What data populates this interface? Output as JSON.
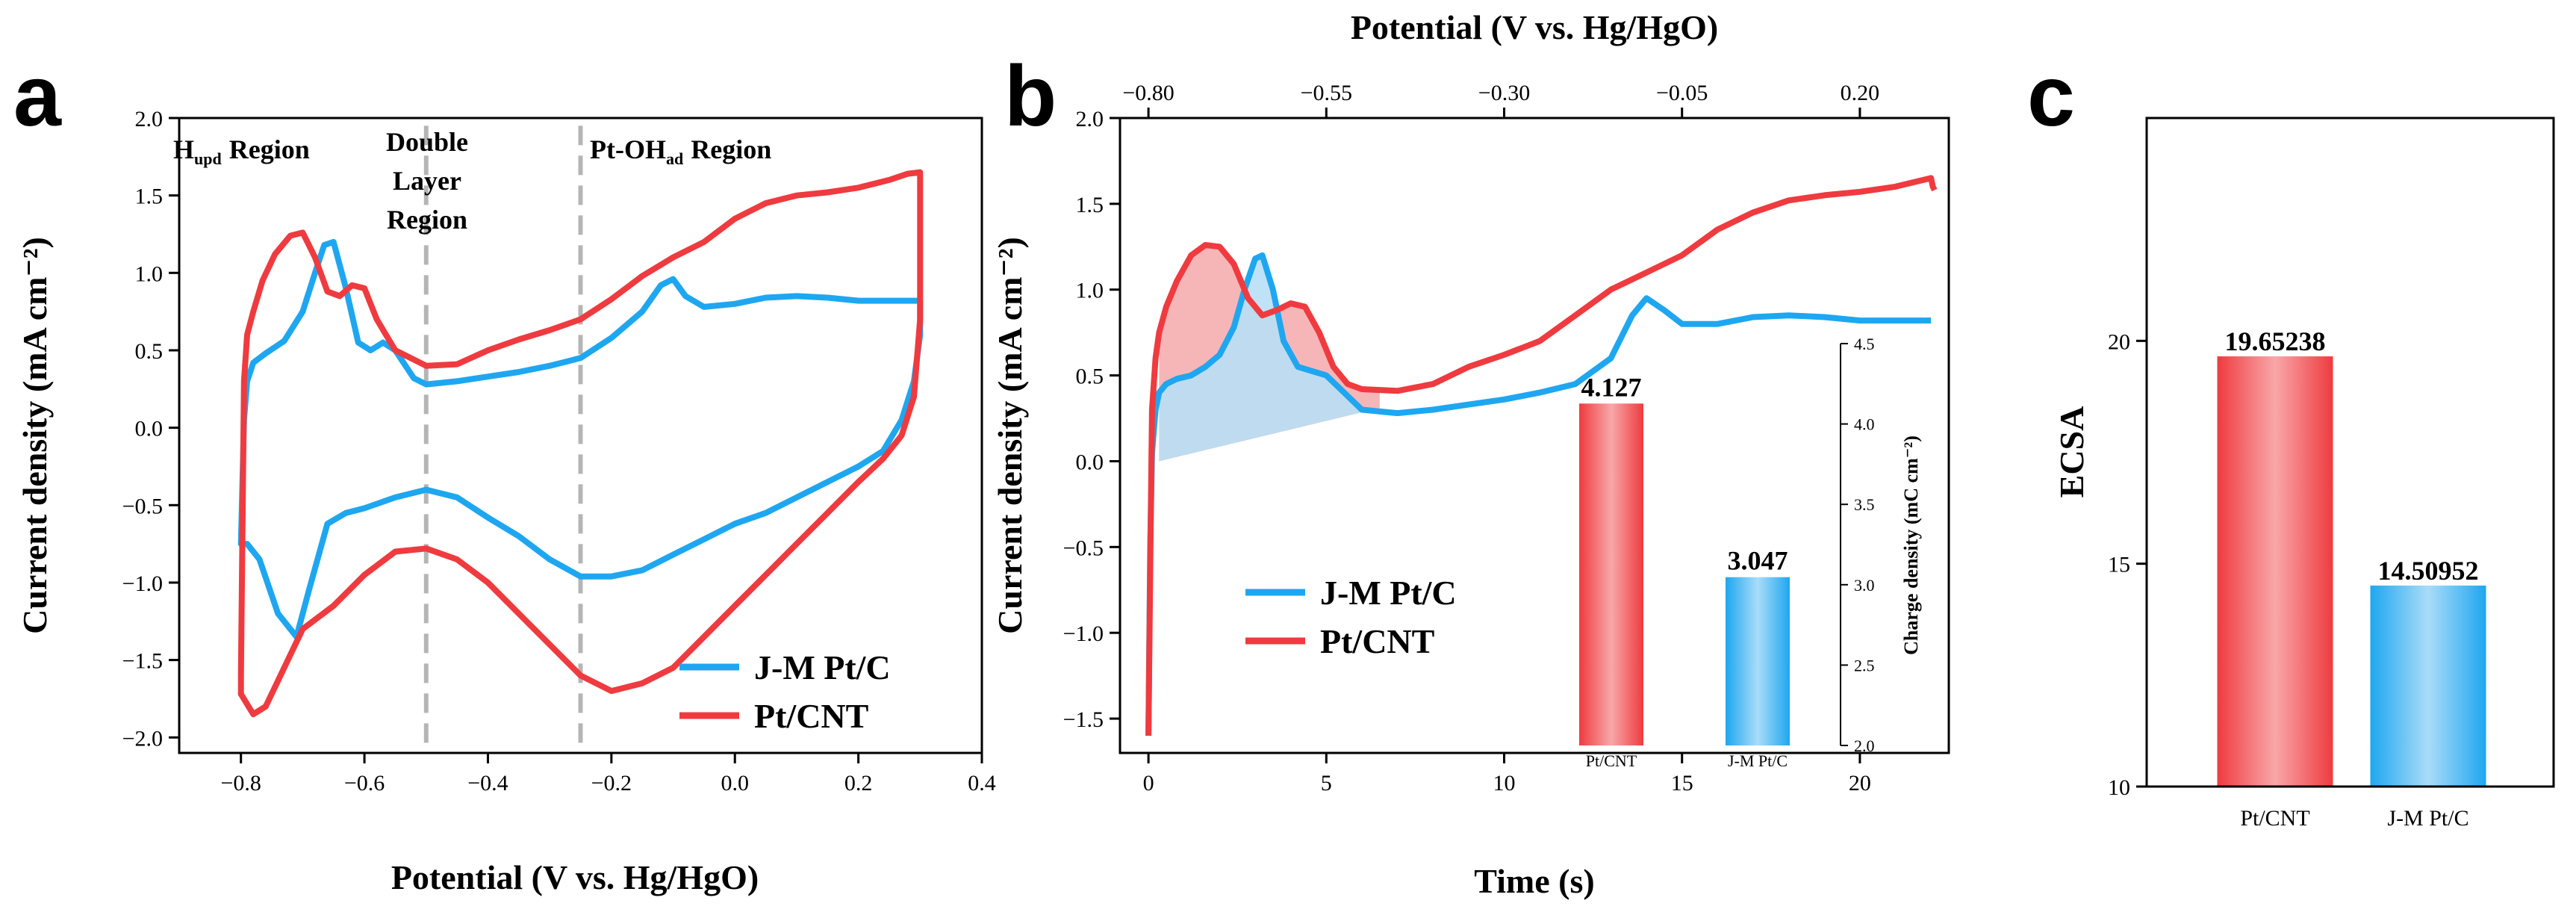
{
  "colors": {
    "blue": "#1ea7f0",
    "red": "#ef3b3f",
    "blue_fill": "#b9dff5",
    "red_fill": "#f5aeb0",
    "grey_dash": "#b5b5b5"
  },
  "chart_data": [
    {
      "panel": "a",
      "type": "line",
      "xlabel": "Potential (V vs. Hg/HgO)",
      "ylabel": "Current density (mA cm⁻²)",
      "xlim": [
        -0.9,
        0.4
      ],
      "ylim": [
        -2.1,
        2.0
      ],
      "xticks": [
        "-0.8",
        "-0.6",
        "-0.4",
        "-0.2",
        "0.0",
        "0.2",
        "0.4"
      ],
      "yticks": [
        "-2.0",
        "-1.5",
        "-1.0",
        "-0.5",
        "0.0",
        "0.5",
        "1.0",
        "1.5",
        "2.0"
      ],
      "region_lines": [
        -0.5,
        -0.25
      ],
      "annotations": {
        "hupd_main": "H",
        "hupd_sub": "upd",
        "hupd_rest": "Region",
        "double1": "Double",
        "double2": "Layer",
        "double3": "Region",
        "ptoh_main": "Pt-OH",
        "ptoh_sub": "ad",
        "ptoh_rest": "Region"
      },
      "series": [
        {
          "name": "J-M Pt/C",
          "color": "#1ea7f0",
          "x": [
            -0.8,
            -0.795,
            -0.79,
            -0.78,
            -0.76,
            -0.73,
            -0.7,
            -0.68,
            -0.665,
            -0.65,
            -0.63,
            -0.61,
            -0.59,
            -0.57,
            -0.55,
            -0.52,
            -0.5,
            -0.45,
            -0.4,
            -0.35,
            -0.3,
            -0.25,
            -0.2,
            -0.15,
            -0.12,
            -0.1,
            -0.08,
            -0.05,
            0.0,
            0.05,
            0.1,
            0.15,
            0.2,
            0.25,
            0.3,
            0.3,
            0.29,
            0.27,
            0.24,
            0.2,
            0.15,
            0.1,
            0.05,
            0.0,
            -0.05,
            -0.1,
            -0.15,
            -0.2,
            -0.25,
            -0.3,
            -0.35,
            -0.4,
            -0.45,
            -0.5,
            -0.55,
            -0.6,
            -0.63,
            -0.66,
            -0.69,
            -0.71,
            -0.74,
            -0.77,
            -0.79,
            -0.8
          ],
          "y": [
            -0.75,
            0.05,
            0.3,
            0.42,
            0.48,
            0.56,
            0.75,
            1.0,
            1.18,
            1.2,
            0.9,
            0.55,
            0.5,
            0.55,
            0.5,
            0.32,
            0.28,
            0.3,
            0.33,
            0.36,
            0.4,
            0.45,
            0.58,
            0.75,
            0.92,
            0.96,
            0.85,
            0.78,
            0.8,
            0.84,
            0.85,
            0.84,
            0.82,
            0.82,
            0.82,
            0.6,
            0.3,
            0.05,
            -0.15,
            -0.25,
            -0.35,
            -0.45,
            -0.55,
            -0.62,
            -0.72,
            -0.82,
            -0.92,
            -0.96,
            -0.96,
            -0.85,
            -0.7,
            -0.58,
            -0.45,
            -0.4,
            -0.45,
            -0.52,
            -0.55,
            -0.62,
            -1.05,
            -1.35,
            -1.2,
            -0.85,
            -0.75,
            -0.75
          ]
        },
        {
          "name": "Pt/CNT",
          "color": "#ef3b3f",
          "x": [
            -0.8,
            -0.795,
            -0.79,
            -0.78,
            -0.765,
            -0.745,
            -0.72,
            -0.7,
            -0.68,
            -0.66,
            -0.64,
            -0.62,
            -0.6,
            -0.58,
            -0.55,
            -0.5,
            -0.45,
            -0.4,
            -0.35,
            -0.3,
            -0.25,
            -0.2,
            -0.15,
            -0.1,
            -0.05,
            0.0,
            0.05,
            0.1,
            0.15,
            0.2,
            0.25,
            0.28,
            0.3,
            0.3,
            0.29,
            0.27,
            0.24,
            0.2,
            0.15,
            0.1,
            0.05,
            0.0,
            -0.05,
            -0.1,
            -0.15,
            -0.2,
            -0.25,
            -0.3,
            -0.35,
            -0.4,
            -0.45,
            -0.5,
            -0.55,
            -0.6,
            -0.65,
            -0.7,
            -0.73,
            -0.76,
            -0.78,
            -0.8
          ],
          "y": [
            -1.6,
            0.3,
            0.6,
            0.75,
            0.95,
            1.12,
            1.24,
            1.26,
            1.1,
            0.88,
            0.85,
            0.92,
            0.9,
            0.7,
            0.5,
            0.4,
            0.41,
            0.5,
            0.57,
            0.63,
            0.7,
            0.83,
            0.98,
            1.1,
            1.2,
            1.35,
            1.45,
            1.5,
            1.52,
            1.55,
            1.6,
            1.64,
            1.65,
            0.7,
            0.2,
            -0.05,
            -0.2,
            -0.35,
            -0.55,
            -0.75,
            -0.95,
            -1.15,
            -1.35,
            -1.55,
            -1.65,
            -1.7,
            -1.6,
            -1.4,
            -1.2,
            -1.0,
            -0.85,
            -0.78,
            -0.8,
            -0.95,
            -1.15,
            -1.3,
            -1.55,
            -1.8,
            -1.85,
            -1.72
          ]
        }
      ],
      "legend": [
        "J-M Pt/C",
        "Pt/CNT"
      ]
    },
    {
      "panel": "b",
      "type": "line",
      "xlabel": "Time (s)",
      "x2label": "Potential (V vs. Hg/HgO)",
      "ylabel": "Current density (mA cm⁻²)",
      "xlim": [
        -0.8,
        22.5
      ],
      "ylim": [
        -1.7,
        2.0
      ],
      "xticks": [
        "0",
        "5",
        "10",
        "15",
        "20"
      ],
      "x2ticks": [
        "-0.80",
        "-0.55",
        "-0.30",
        "-0.05",
        "0.20"
      ],
      "yticks": [
        "-1.5",
        "-1.0",
        "-0.5",
        "0.0",
        "0.5",
        "1.0",
        "1.5",
        "2.0"
      ],
      "series": [
        {
          "name": "J-M Pt/C",
          "color": "#1ea7f0",
          "x": [
            0,
            0.05,
            0.1,
            0.2,
            0.3,
            0.5,
            0.8,
            1.2,
            1.6,
            2.0,
            2.4,
            2.7,
            3.0,
            3.2,
            3.5,
            3.8,
            4.2,
            5.0,
            6.0,
            7.0,
            8.0,
            9.0,
            10.0,
            11.0,
            12.0,
            13.0,
            13.6,
            14.0,
            14.5,
            15.0,
            16.0,
            17.0,
            18.0,
            19.0,
            20.0,
            21.0,
            22.0
          ],
          "y": [
            -1.6,
            -0.5,
            0.05,
            0.3,
            0.4,
            0.45,
            0.48,
            0.5,
            0.55,
            0.62,
            0.78,
            1.0,
            1.18,
            1.2,
            1.0,
            0.7,
            0.55,
            0.5,
            0.3,
            0.28,
            0.3,
            0.33,
            0.36,
            0.4,
            0.45,
            0.6,
            0.85,
            0.95,
            0.88,
            0.8,
            0.8,
            0.84,
            0.85,
            0.84,
            0.82,
            0.82,
            0.82
          ]
        },
        {
          "name": "Pt/CNT",
          "color": "#ef3b3f",
          "x": [
            0,
            0.05,
            0.1,
            0.2,
            0.3,
            0.5,
            0.8,
            1.2,
            1.6,
            2.0,
            2.4,
            2.8,
            3.2,
            3.6,
            4.0,
            4.4,
            4.8,
            5.2,
            5.6,
            6.0,
            7.0,
            8.0,
            9.0,
            10.0,
            11.0,
            12.0,
            13.0,
            14.0,
            15.0,
            16.0,
            17.0,
            18.0,
            19.0,
            20.0,
            21.0,
            22.0,
            22.05,
            22.1
          ],
          "y": [
            -1.6,
            -0.6,
            0.3,
            0.6,
            0.75,
            0.9,
            1.05,
            1.2,
            1.26,
            1.25,
            1.15,
            0.95,
            0.85,
            0.88,
            0.92,
            0.9,
            0.75,
            0.55,
            0.45,
            0.42,
            0.41,
            0.45,
            0.55,
            0.62,
            0.7,
            0.85,
            1.0,
            1.1,
            1.2,
            1.35,
            1.45,
            1.52,
            1.55,
            1.57,
            1.6,
            1.65,
            1.6,
            1.58
          ]
        }
      ],
      "baseline": {
        "x": [
          0.3,
          6.5
        ],
        "y": [
          0.0,
          0.31
        ]
      },
      "legend": [
        "J-M Pt/C",
        "Pt/CNT"
      ],
      "inset": {
        "type": "bar",
        "categories": [
          "Pt/CNT",
          "J-M Pt/C"
        ],
        "values": [
          4.127,
          3.047
        ],
        "value_labels": [
          "4.127",
          "3.047"
        ],
        "ylabel": "Charge density (mC cm⁻²)",
        "ylim": [
          2.0,
          4.5
        ],
        "yticks": [
          "2.0",
          "2.5",
          "3.0",
          "3.5",
          "4.0",
          "4.5"
        ]
      }
    },
    {
      "panel": "c",
      "type": "bar",
      "categories": [
        "Pt/CNT",
        "J-M Pt/C"
      ],
      "values": [
        19.65238,
        14.50952
      ],
      "value_labels": [
        "19.65238",
        "14.50952"
      ],
      "ylabel": "ECSA",
      "ylim": [
        10,
        25
      ],
      "yticks": [
        "10",
        "15",
        "20"
      ]
    }
  ]
}
